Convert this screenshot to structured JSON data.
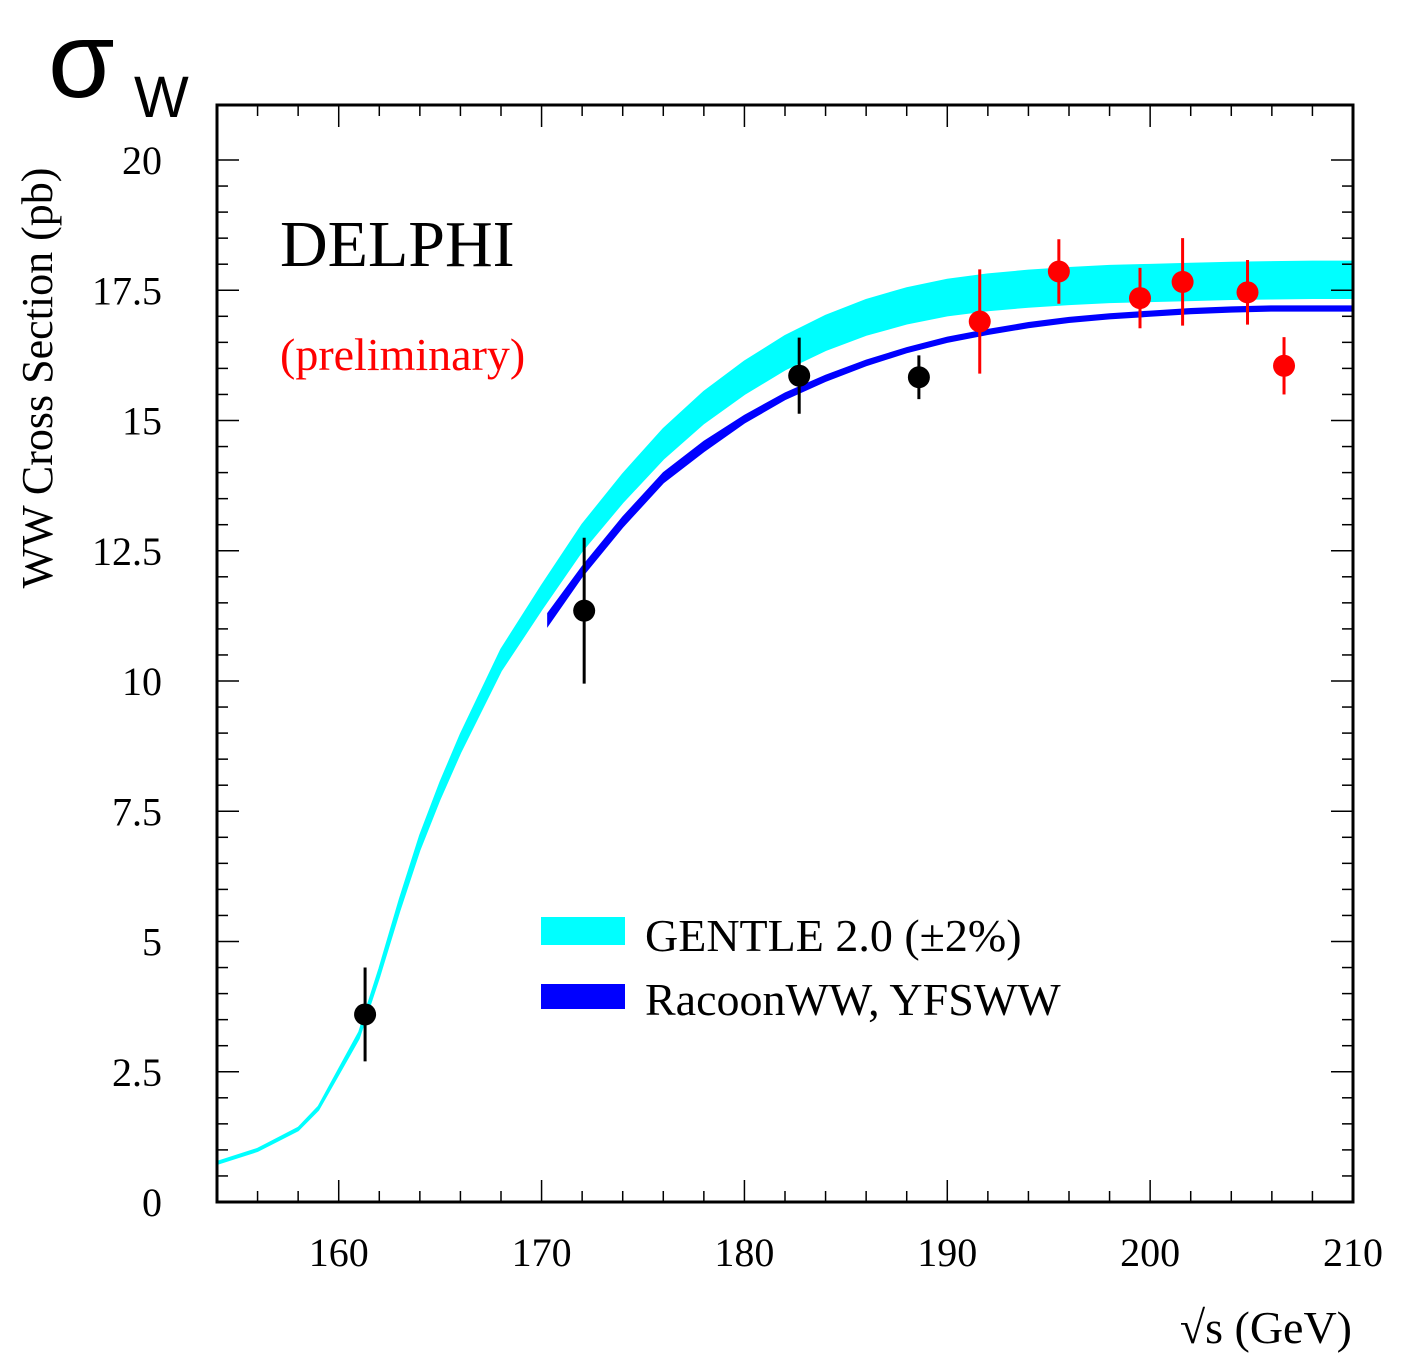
{
  "chart_data": {
    "type": "scatter",
    "symbol": {
      "main": "σ",
      "sub": "W"
    },
    "experiment_label": "DELPHI",
    "status_label": "(preliminary)",
    "xlabel": "√s (GeV)",
    "ylabel": "WW Cross Section (pb)",
    "xlim": [
      154,
      210
    ],
    "ylim": [
      0,
      21
    ],
    "x_ticks": [
      160,
      170,
      180,
      190,
      200,
      210
    ],
    "y_ticks": [
      0,
      2.5,
      5,
      7.5,
      10,
      12.5,
      15,
      17.5,
      20
    ],
    "y_tick_labels": [
      "0",
      "2.5",
      "5",
      "7.5",
      "10",
      "12.5",
      "15",
      "17.5",
      "20"
    ],
    "grid": false,
    "legend_position": "lower-right",
    "colors": {
      "gentle_band": "#00ffff",
      "racoon_band": "#0000ff",
      "data_black": "#000000",
      "data_red": "#ff0000"
    },
    "bands": [
      {
        "name": "GENTLE 2.0 (±2%)",
        "color": "#00ffff",
        "x": [
          154,
          156,
          158,
          159,
          160,
          161,
          162,
          163,
          164,
          165,
          166,
          168,
          170,
          172,
          174,
          176,
          178,
          180,
          182,
          184,
          186,
          188,
          190,
          192,
          194,
          196,
          198,
          200,
          202,
          204,
          206,
          208,
          210
        ],
        "center": [
          0.75,
          1.0,
          1.4,
          1.8,
          2.5,
          3.2,
          4.4,
          5.7,
          6.9,
          7.9,
          8.8,
          10.4,
          11.6,
          12.75,
          13.7,
          14.55,
          15.25,
          15.82,
          16.3,
          16.68,
          16.98,
          17.2,
          17.36,
          17.46,
          17.53,
          17.58,
          17.62,
          17.64,
          17.66,
          17.68,
          17.69,
          17.7,
          17.7
        ],
        "rel_width": 0.02
      },
      {
        "name": "RacoonWW, YFSWW",
        "color": "#0000ff",
        "x": [
          170.3,
          172,
          174,
          176,
          178,
          180,
          182,
          184,
          186,
          188,
          190,
          192,
          194,
          196,
          198,
          200,
          202,
          204,
          206,
          208,
          210
        ],
        "lower": [
          11.05,
          12.0,
          12.95,
          13.8,
          14.4,
          14.95,
          15.4,
          15.75,
          16.05,
          16.3,
          16.5,
          16.65,
          16.78,
          16.88,
          16.95,
          17.0,
          17.05,
          17.08,
          17.1,
          17.1,
          17.1
        ],
        "upper": [
          11.3,
          12.2,
          13.15,
          14.0,
          14.6,
          15.1,
          15.53,
          15.87,
          16.16,
          16.4,
          16.6,
          16.75,
          16.88,
          16.98,
          17.05,
          17.1,
          17.15,
          17.18,
          17.2,
          17.2,
          17.2
        ]
      }
    ],
    "series": [
      {
        "color": "#000000",
        "points": [
          {
            "x": 161.3,
            "y": 3.6,
            "err": 0.9
          },
          {
            "x": 172.1,
            "y": 11.35,
            "err": 1.4
          },
          {
            "x": 182.7,
            "y": 15.86,
            "err": 0.73
          },
          {
            "x": 188.6,
            "y": 15.83,
            "err": 0.42
          }
        ]
      },
      {
        "color": "#ff0000",
        "points": [
          {
            "x": 191.6,
            "y": 16.9,
            "err": 1.0
          },
          {
            "x": 195.5,
            "y": 17.86,
            "err": 0.62
          },
          {
            "x": 199.5,
            "y": 17.35,
            "err": 0.58
          },
          {
            "x": 201.6,
            "y": 17.66,
            "err": 0.84
          },
          {
            "x": 204.8,
            "y": 17.46,
            "err": 0.62
          },
          {
            "x": 206.6,
            "y": 16.05,
            "err": 0.55
          }
        ]
      }
    ]
  }
}
